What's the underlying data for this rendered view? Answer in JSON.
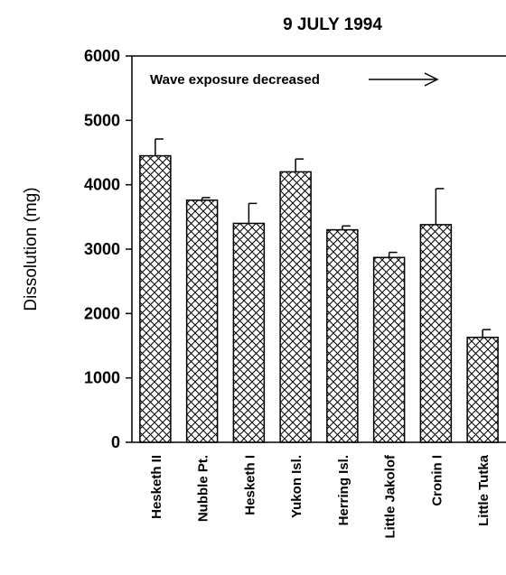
{
  "chart_data": {
    "type": "bar",
    "title": "9 JULY 1994",
    "ylabel": "Dissolution  (mg)",
    "xlabel": "",
    "ylim": [
      0,
      6000
    ],
    "yticks": [
      0,
      1000,
      2000,
      3000,
      4000,
      5000,
      6000
    ],
    "categories": [
      "Hesketh II",
      "Nubble Pt.",
      "Hesketh I",
      "Yukon Isl.",
      "Herring Isl.",
      "Little Jakolof",
      "Cronin I",
      "Little Tutka"
    ],
    "values": [
      4450,
      3760,
      3400,
      4200,
      3300,
      2870,
      3380,
      1630
    ],
    "error": [
      260,
      40,
      310,
      200,
      60,
      80,
      560,
      120
    ],
    "annotation": "Wave exposure decreased",
    "grid": false,
    "bar_fill": "crosshatch",
    "colors": {
      "bar_edge": "#000000",
      "bar_fill": "#ffffff",
      "hatch": "#000000"
    }
  }
}
